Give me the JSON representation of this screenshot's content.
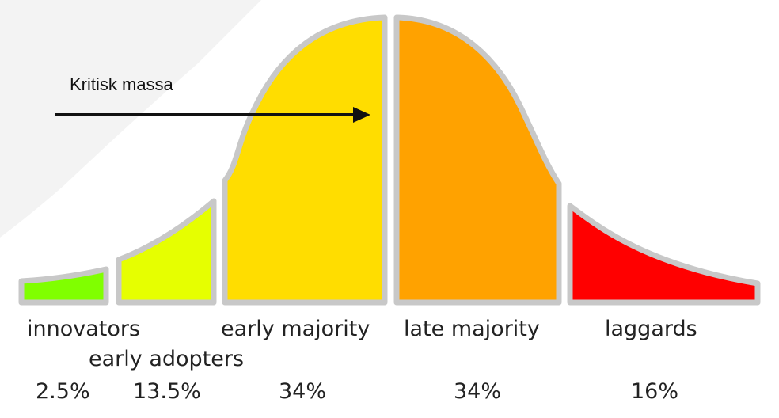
{
  "annotation": {
    "text": "Kritisk massa"
  },
  "segments": [
    {
      "label": "innovators",
      "percent": "2.5%",
      "value": 2.5,
      "color": "#80ff00"
    },
    {
      "label": "early adopters",
      "percent": "13.5%",
      "value": 13.5,
      "color": "#e6ff00"
    },
    {
      "label": "early majority",
      "percent": "34%",
      "value": 34,
      "color": "#ffdd00"
    },
    {
      "label": "late majority",
      "percent": "34%",
      "value": 34,
      "color": "#ffa200"
    },
    {
      "label": "laggards",
      "percent": "16%",
      "value": 16,
      "color": "#ff0000"
    }
  ],
  "colors": {
    "outline": "#c8c8c8",
    "arrow": "#111111",
    "watermark": "#f3f3f3"
  }
}
